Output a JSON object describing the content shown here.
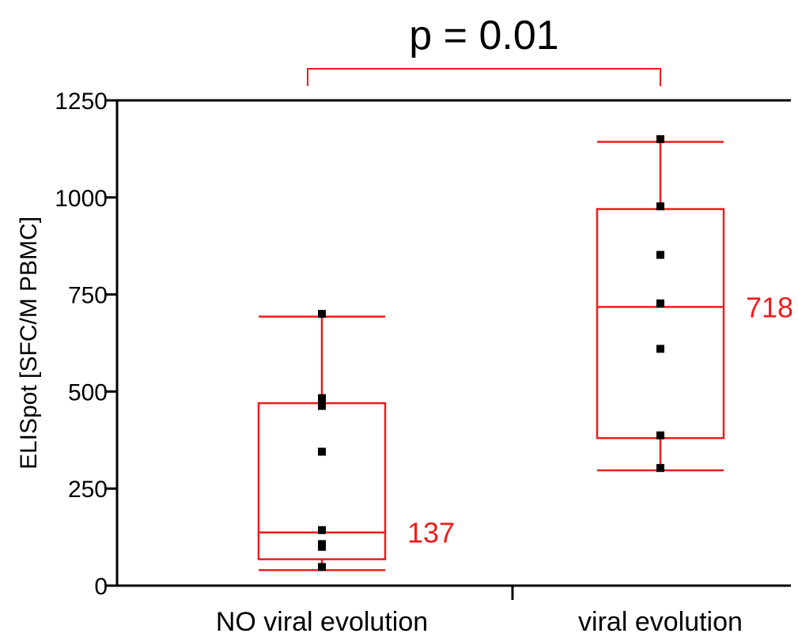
{
  "chart_data": {
    "type": "box",
    "ylabel": "ELISpot [SFC/M PBMC]",
    "ylim": [
      0,
      1250
    ],
    "yticks": [
      0,
      250,
      500,
      750,
      1000,
      1250
    ],
    "categories": [
      "NO viral evolution",
      "viral evolution"
    ],
    "boxes": [
      {
        "name": "NO viral evolution",
        "min": 40,
        "q1": 68,
        "median": 137,
        "q3": 470,
        "max": 693,
        "median_label": "137",
        "points": [
          700,
          483,
          463,
          345,
          143,
          107,
          100,
          48
        ]
      },
      {
        "name": "viral evolution",
        "min": 297,
        "q1": 380,
        "median": 718,
        "q3": 970,
        "max": 1143,
        "median_label": "718",
        "points": [
          1150,
          977,
          852,
          727,
          610,
          387,
          303
        ]
      }
    ],
    "annotation": {
      "text": "p = 0.01",
      "between": [
        0,
        1
      ]
    },
    "colors": {
      "box": "#ee1c1c",
      "points": "#000000",
      "axis": "#000000",
      "median_label": "#ee1c1c"
    }
  }
}
